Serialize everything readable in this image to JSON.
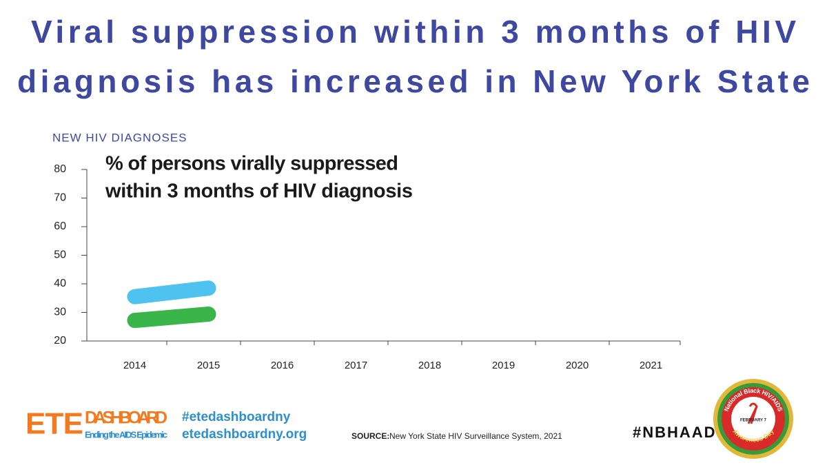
{
  "title": [
    "Viral suppression within 3 months of HIV",
    "diagnosis has increased in New York State"
  ],
  "chart_data": {
    "type": "line",
    "subtitle": "NEW HIV DIAGNOSES",
    "annotation": [
      "% of persons virally suppressed",
      "within 3 months of HIV diagnosis"
    ],
    "categories": [
      "2014",
      "2015",
      "2016",
      "2017",
      "2018",
      "2019",
      "2020",
      "2021"
    ],
    "series": [
      {
        "color": "#4fc3f0",
        "values": [
          35.5,
          38.5,
          null,
          null,
          null,
          null,
          null,
          null
        ]
      },
      {
        "color": "#3ab54a",
        "values": [
          27.2,
          29.4,
          null,
          null,
          null,
          null,
          null,
          null
        ]
      }
    ],
    "ylim": [
      20,
      80
    ],
    "yticks": [
      20,
      30,
      40,
      50,
      60,
      70,
      80
    ]
  },
  "footer": {
    "logo_main": "ETE",
    "logo_word": "DASHBOARD",
    "logo_tagline": "Ending the AIDS Epidemic",
    "hashtag": "#etedashboardny",
    "url": "etedashboardny.org",
    "source_label": "SOURCE:",
    "source_text": "New York State HIV Surveillance System, 2021",
    "campaign": "#NBHAAD",
    "badge": {
      "top": "National Black HIV/AIDS",
      "date": "FEBRUARY 7",
      "bottom": "Awareness Day"
    }
  }
}
